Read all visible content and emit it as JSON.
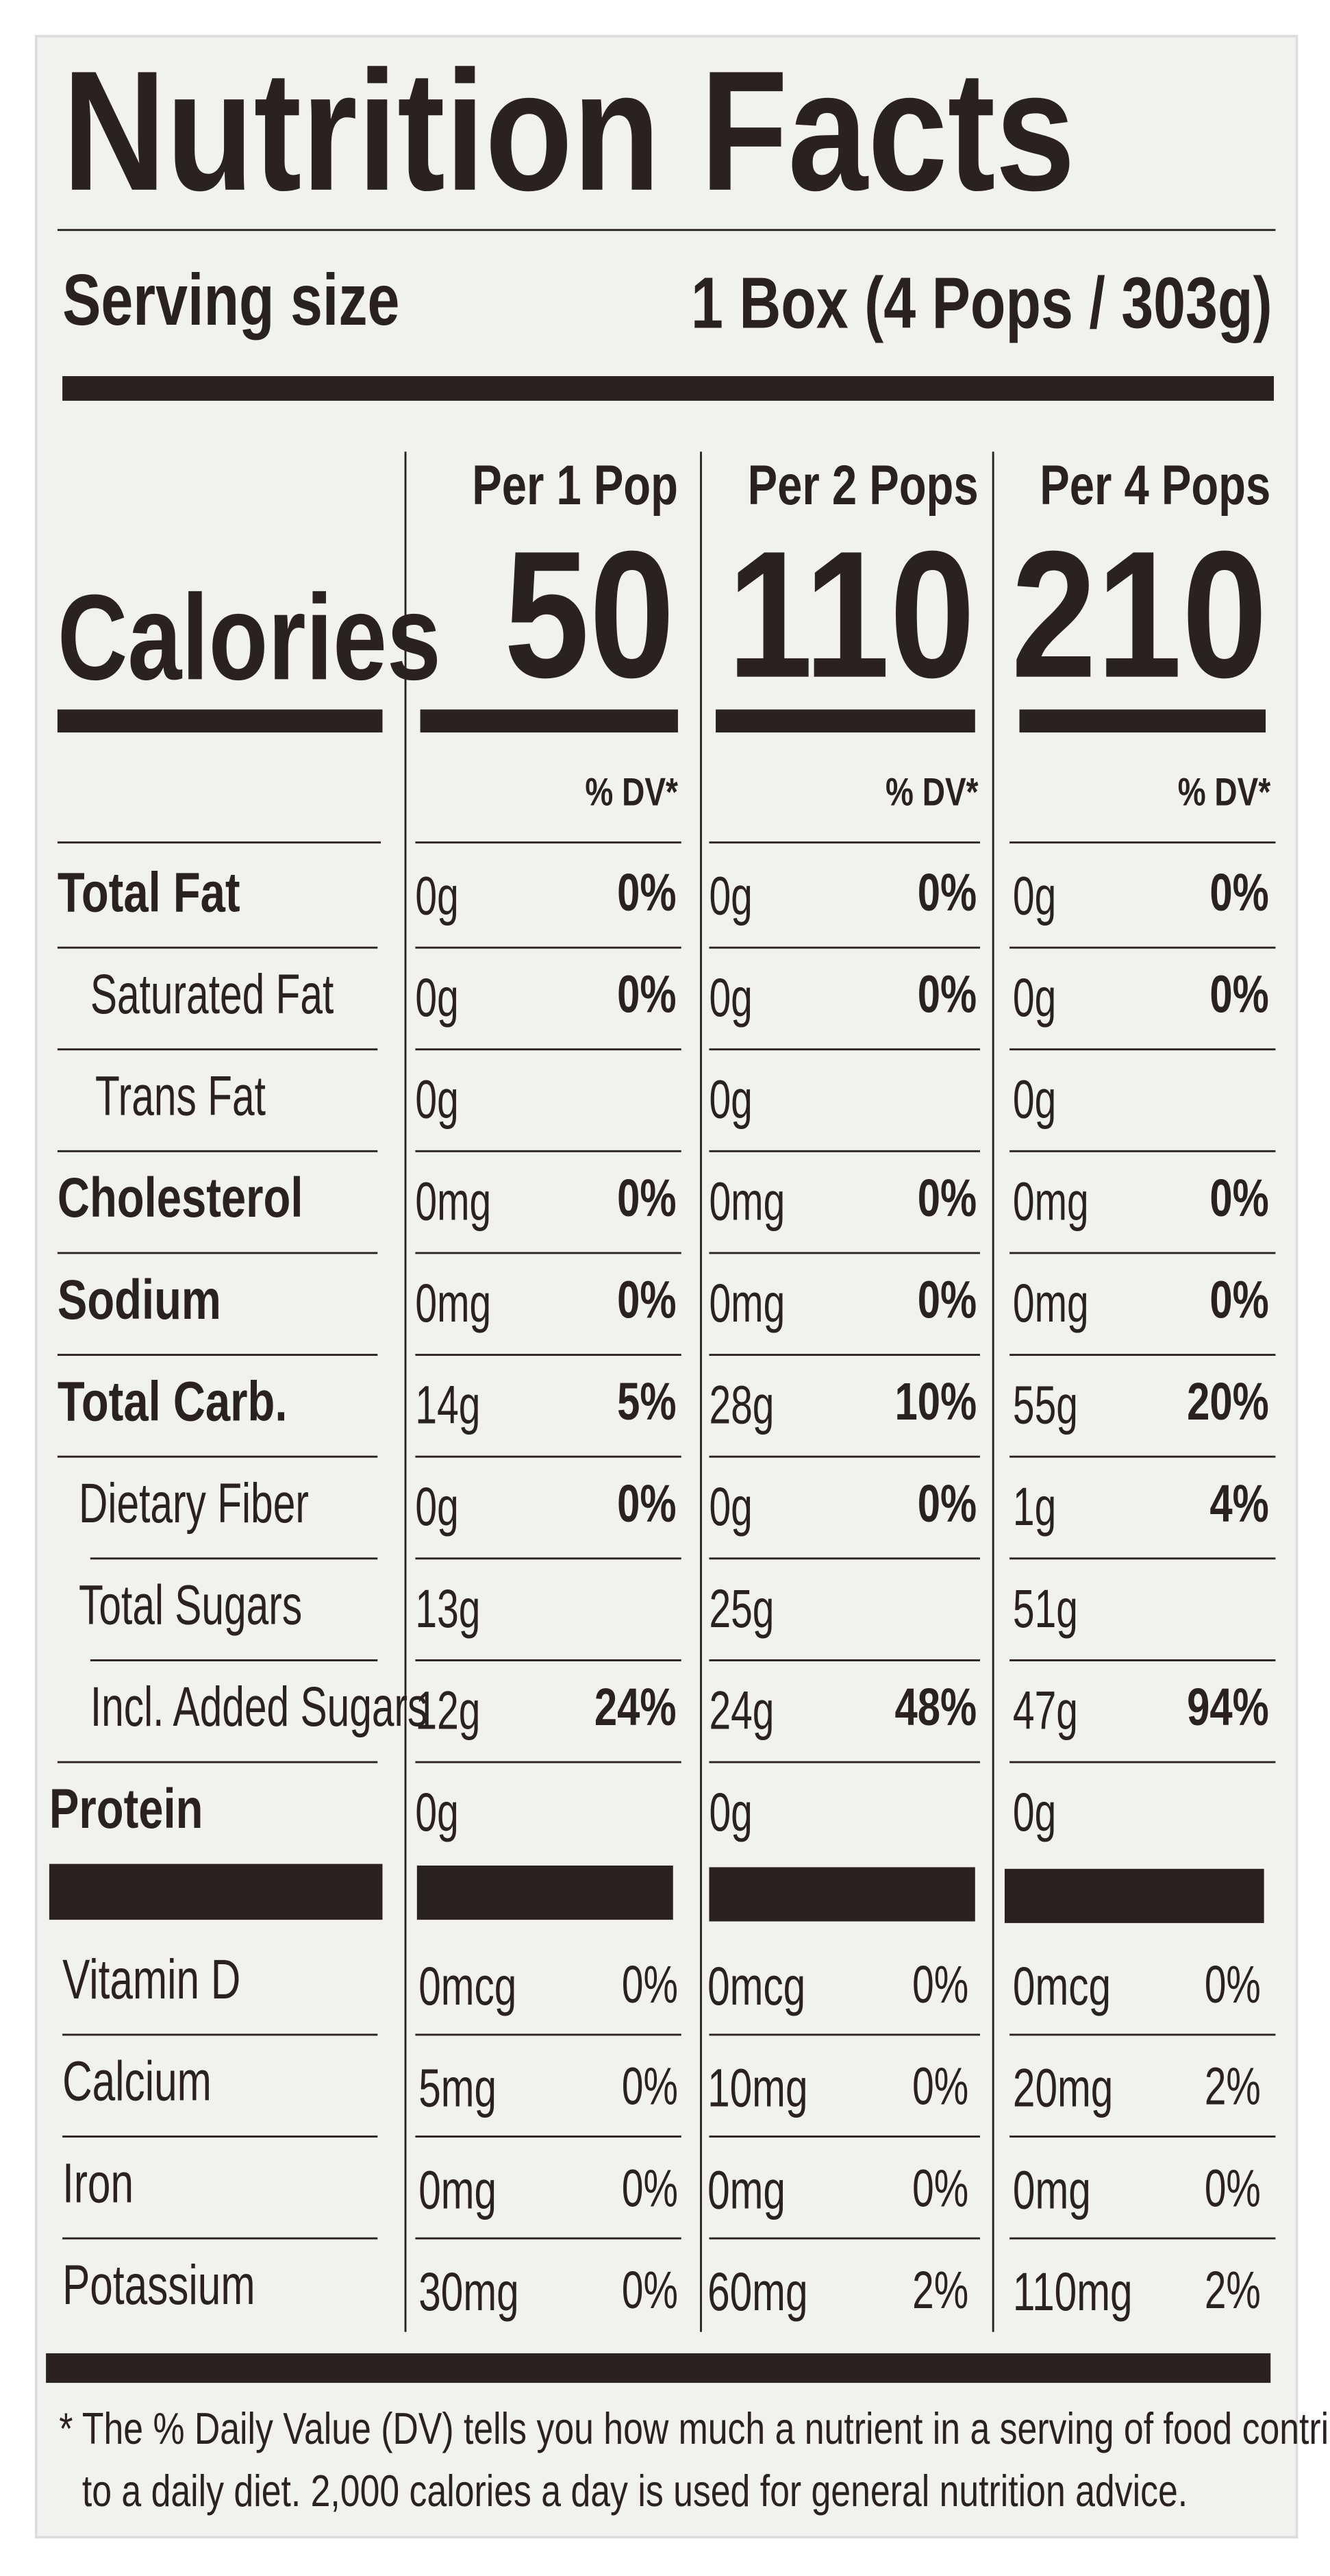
{
  "title": "Nutrition Facts",
  "serving": {
    "label": "Serving size",
    "value": "1 Box (4 Pops / 303g)"
  },
  "calories_label": "Calories",
  "columns": [
    {
      "heading": "Per 1 Pop",
      "calories": 50,
      "dv_heading": "% DV*"
    },
    {
      "heading": "Per 2 Pops",
      "calories": 110,
      "dv_heading": "% DV*"
    },
    {
      "heading": "Per 4 Pops",
      "calories": 210,
      "dv_heading": "% DV*"
    }
  ],
  "nutrients": [
    {
      "name": "Total Fat",
      "bold": true,
      "values": [
        {
          "amount": "0g",
          "dv": "0%"
        },
        {
          "amount": "0g",
          "dv": "0%"
        },
        {
          "amount": "0g",
          "dv": "0%"
        }
      ]
    },
    {
      "name": "Saturated Fat",
      "bold": false,
      "values": [
        {
          "amount": "0g",
          "dv": "0%"
        },
        {
          "amount": "0g",
          "dv": "0%"
        },
        {
          "amount": "0g",
          "dv": "0%"
        }
      ]
    },
    {
      "name": "Trans Fat",
      "bold": false,
      "values": [
        {
          "amount": "0g"
        },
        {
          "amount": "0g"
        },
        {
          "amount": "0g"
        }
      ]
    },
    {
      "name": "Cholesterol",
      "bold": true,
      "values": [
        {
          "amount": "0mg",
          "dv": "0%"
        },
        {
          "amount": "0mg",
          "dv": "0%"
        },
        {
          "amount": "0mg",
          "dv": "0%"
        }
      ]
    },
    {
      "name": "Sodium",
      "bold": true,
      "values": [
        {
          "amount": "0mg",
          "dv": "0%"
        },
        {
          "amount": "0mg",
          "dv": "0%"
        },
        {
          "amount": "0mg",
          "dv": "0%"
        }
      ]
    },
    {
      "name": "Total Carb.",
      "bold": true,
      "values": [
        {
          "amount": "14g",
          "dv": "5%"
        },
        {
          "amount": "28g",
          "dv": "10%"
        },
        {
          "amount": "55g",
          "dv": "20%"
        }
      ]
    },
    {
      "name": "Dietary Fiber",
      "bold": false,
      "values": [
        {
          "amount": "0g",
          "dv": "0%"
        },
        {
          "amount": "0g",
          "dv": "0%"
        },
        {
          "amount": "1g",
          "dv": "4%"
        }
      ]
    },
    {
      "name": "Total Sugars",
      "bold": false,
      "values": [
        {
          "amount": "13g"
        },
        {
          "amount": "25g"
        },
        {
          "amount": "51g"
        }
      ]
    },
    {
      "name": "Incl. Added Sugars",
      "bold": false,
      "values": [
        {
          "amount": "12g",
          "dv": "24%"
        },
        {
          "amount": "24g",
          "dv": "48%"
        },
        {
          "amount": "47g",
          "dv": "94%"
        }
      ]
    },
    {
      "name": "Protein",
      "bold": true,
      "values": [
        {
          "amount": "0g"
        },
        {
          "amount": "0g"
        },
        {
          "amount": "0g"
        }
      ]
    }
  ],
  "vitamins": [
    {
      "name": "Vitamin D",
      "values": [
        {
          "amount": "0mcg",
          "dv": "0%"
        },
        {
          "amount": "0mcg",
          "dv": "0%"
        },
        {
          "amount": "0mcg",
          "dv": "0%"
        }
      ]
    },
    {
      "name": "Calcium",
      "values": [
        {
          "amount": "5mg",
          "dv": "0%"
        },
        {
          "amount": "10mg",
          "dv": "0%"
        },
        {
          "amount": "20mg",
          "dv": "2%"
        }
      ]
    },
    {
      "name": "Iron",
      "values": [
        {
          "amount": "0mg",
          "dv": "0%"
        },
        {
          "amount": "0mg",
          "dv": "0%"
        },
        {
          "amount": "0mg",
          "dv": "0%"
        }
      ]
    },
    {
      "name": "Potassium",
      "values": [
        {
          "amount": "30mg",
          "dv": "0%"
        },
        {
          "amount": "60mg",
          "dv": "2%"
        },
        {
          "amount": "110mg",
          "dv": "2%"
        }
      ]
    }
  ],
  "footnote": [
    "* The % Daily Value (DV) tells you how much a nutrient in a serving of food contributes",
    "to a daily diet. 2,000 calories a day is used for general nutrition advice."
  ]
}
